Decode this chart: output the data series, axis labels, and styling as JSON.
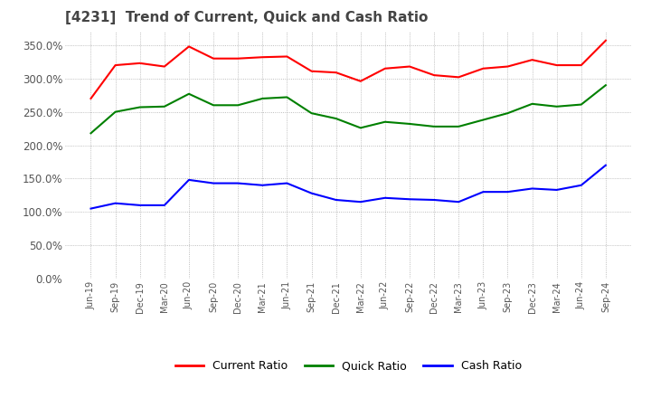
{
  "title": "[4231]  Trend of Current, Quick and Cash Ratio",
  "ylim": [
    0,
    370
  ],
  "yticks": [
    0,
    50,
    100,
    150,
    200,
    250,
    300,
    350
  ],
  "background_color": "#ffffff",
  "grid_color": "#aaaaaa",
  "legend_labels": [
    "Current Ratio",
    "Quick Ratio",
    "Cash Ratio"
  ],
  "legend_colors": [
    "#ff0000",
    "#008000",
    "#0000ff"
  ],
  "x_labels": [
    "Jun-19",
    "Sep-19",
    "Dec-19",
    "Mar-20",
    "Jun-20",
    "Sep-20",
    "Dec-20",
    "Mar-21",
    "Jun-21",
    "Sep-21",
    "Dec-21",
    "Mar-22",
    "Jun-22",
    "Sep-22",
    "Dec-22",
    "Mar-23",
    "Jun-23",
    "Sep-23",
    "Dec-23",
    "Mar-24",
    "Jun-24",
    "Sep-24"
  ],
  "current_ratio": [
    270,
    320,
    323,
    318,
    348,
    330,
    330,
    332,
    333,
    311,
    309,
    296,
    315,
    318,
    305,
    302,
    315,
    318,
    328,
    320,
    320,
    357
  ],
  "quick_ratio": [
    218,
    250,
    257,
    258,
    277,
    260,
    260,
    270,
    272,
    248,
    240,
    226,
    235,
    232,
    228,
    228,
    238,
    248,
    262,
    258,
    261,
    290
  ],
  "cash_ratio": [
    105,
    113,
    110,
    110,
    148,
    143,
    143,
    140,
    143,
    128,
    118,
    115,
    121,
    119,
    118,
    115,
    130,
    130,
    135,
    133,
    140,
    170
  ]
}
